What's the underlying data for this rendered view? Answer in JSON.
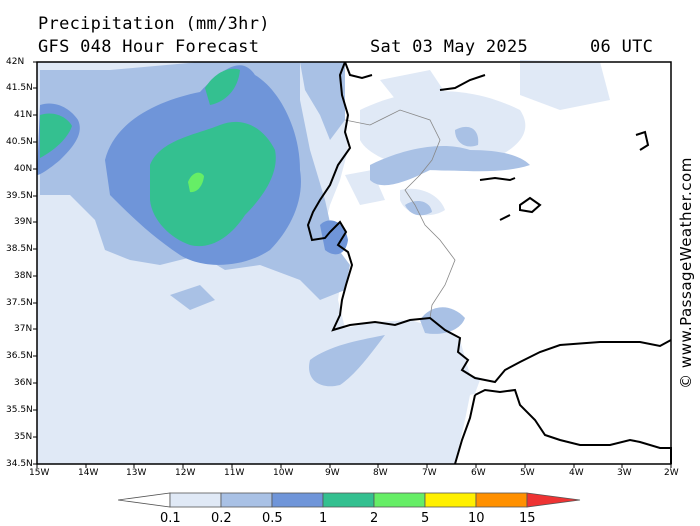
{
  "header": {
    "title": "Precipitation (mm/3hr)",
    "subtitle": "GFS 048 Hour Forecast",
    "date": "Sat 03 May 2025",
    "time": "06 UTC"
  },
  "watermark": "© www.PassageWeather.com",
  "axes": {
    "lat_labels": [
      "42N",
      "41.5N",
      "41N",
      "40.5N",
      "40N",
      "39.5N",
      "39N",
      "38.5N",
      "38N",
      "37.5N",
      "37N",
      "36.5N",
      "36N",
      "35.5N",
      "35N",
      "34.5N"
    ],
    "lon_labels": [
      "15W",
      "14W",
      "13W",
      "12W",
      "11W",
      "10W",
      "9W",
      "8W",
      "7W",
      "6W",
      "5W",
      "4W",
      "3W",
      "2W"
    ]
  },
  "legend": {
    "values": [
      "0.1",
      "0.2",
      "0.5",
      "1",
      "2",
      "5",
      "10",
      "15"
    ],
    "colors": [
      "#ffffff",
      "#e0e9f6",
      "#a9c1e5",
      "#6f95d9",
      "#34c090",
      "#66ee66",
      "#fff000",
      "#ff9000",
      "#ee3333"
    ]
  },
  "colors": {
    "land": "#ffffff",
    "sea": "#ffffff",
    "coast": "#000000",
    "border": "#777777"
  }
}
